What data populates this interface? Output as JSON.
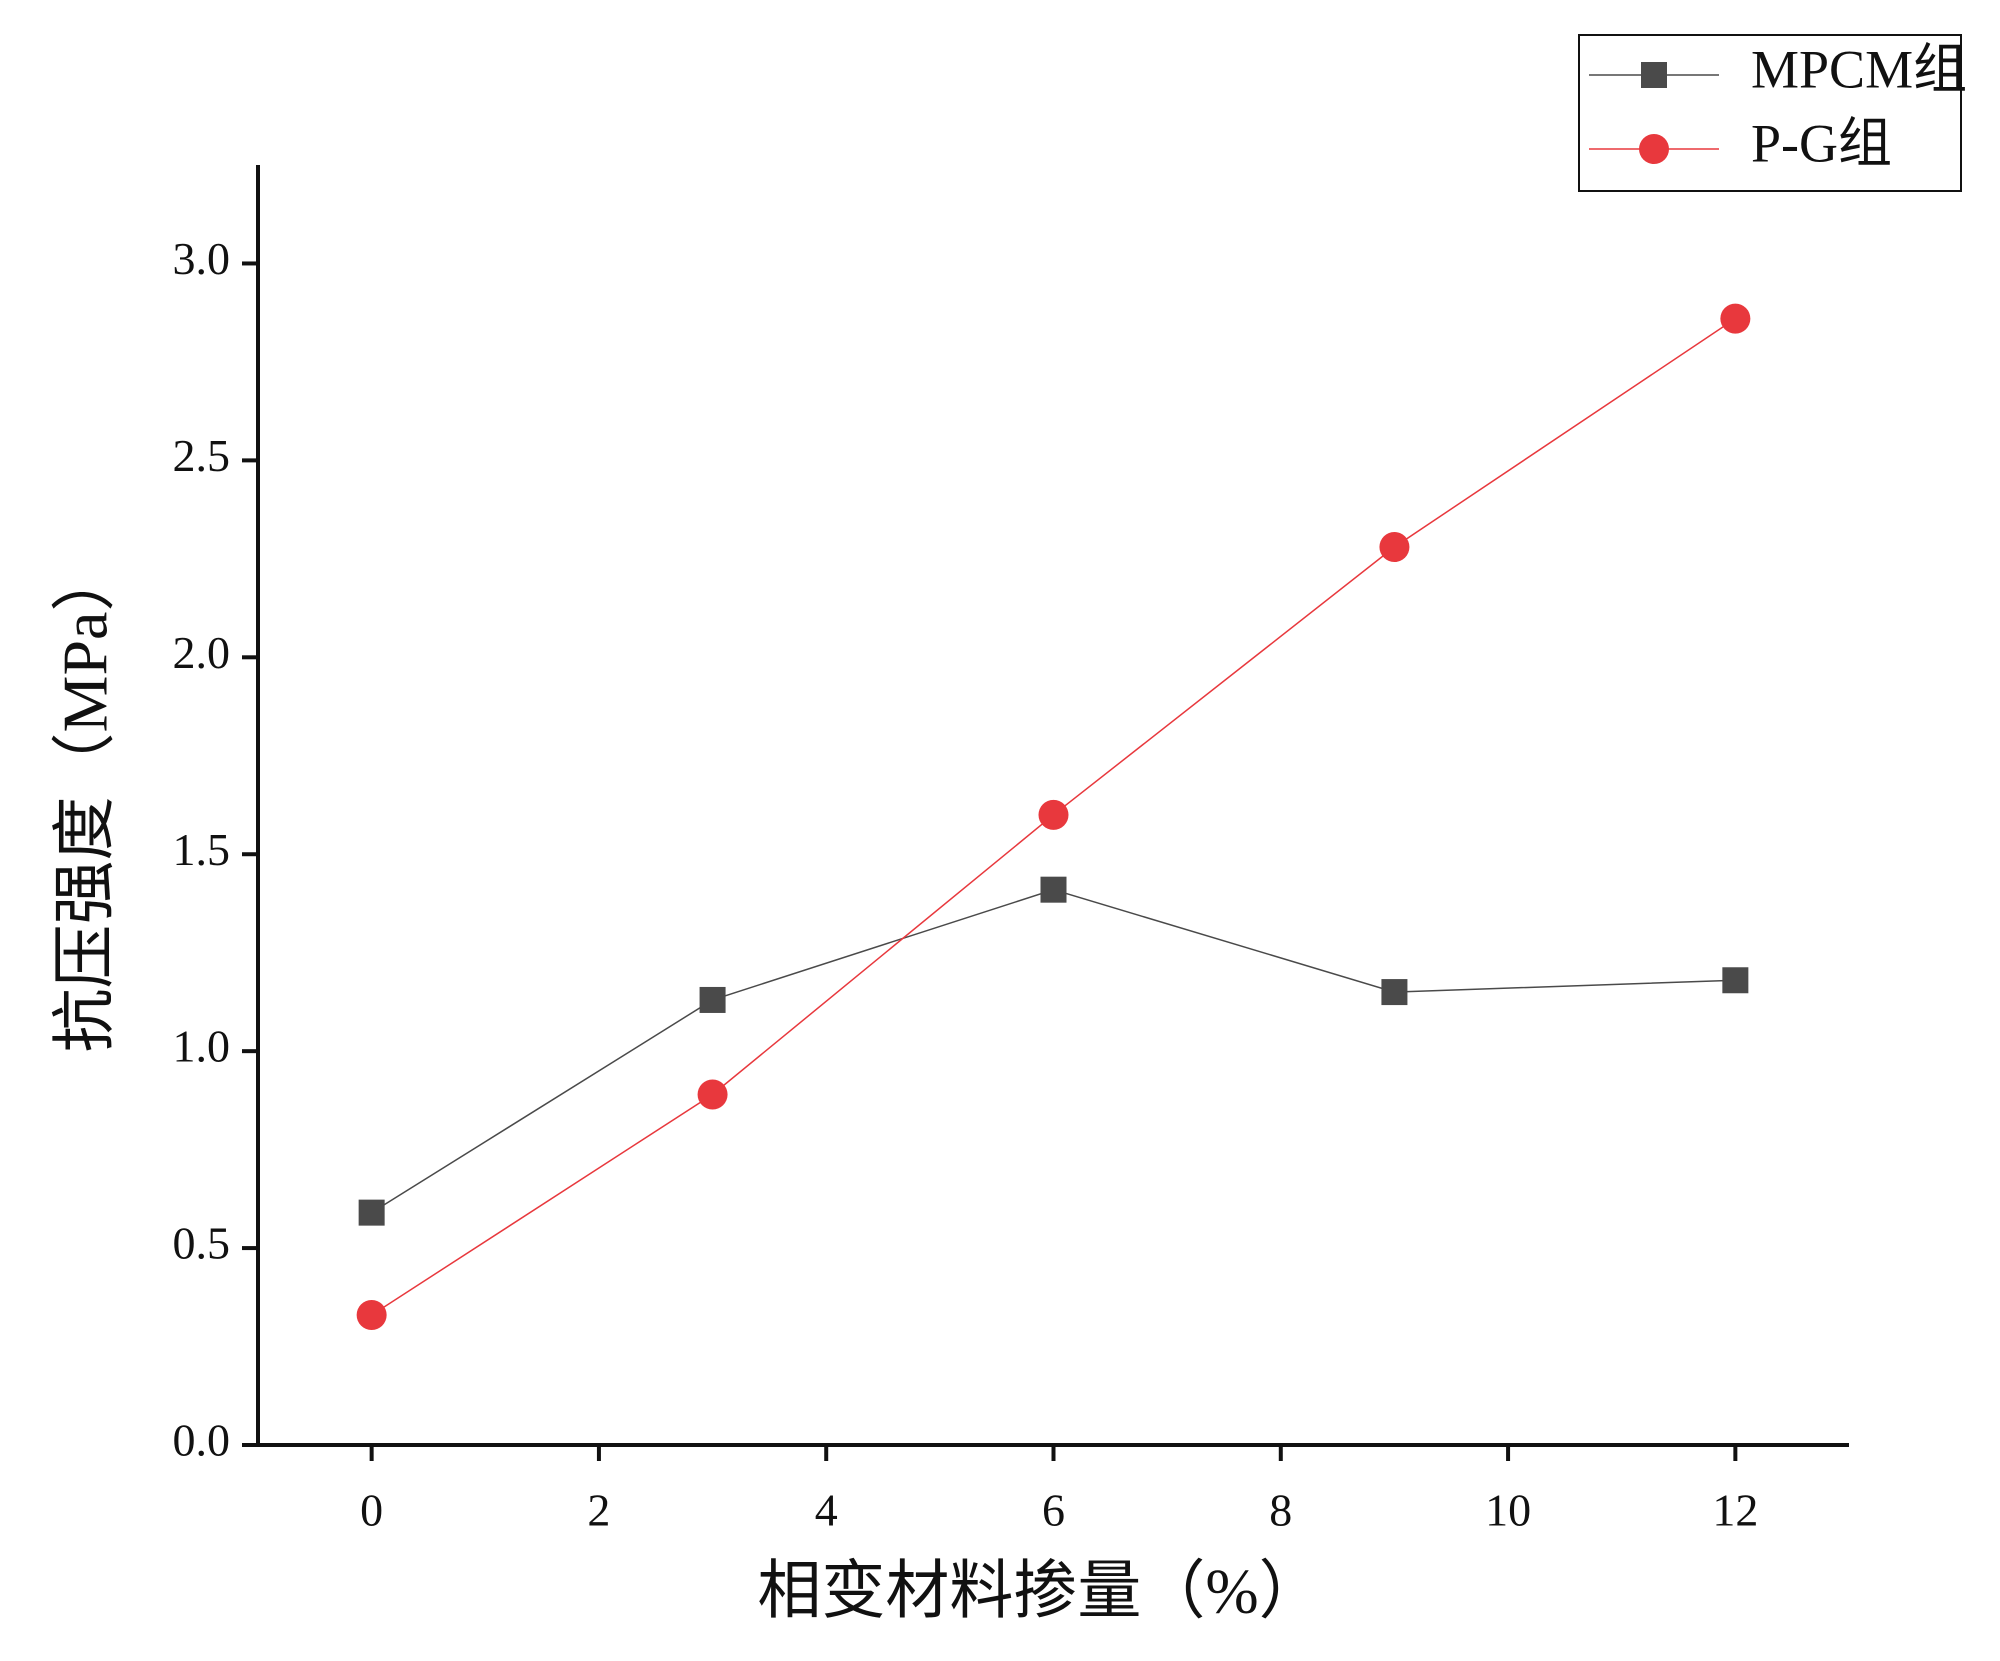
{
  "chart_data": {
    "type": "line",
    "x_label": "相变材料掺量（%）",
    "y_label": "抗压强度（MPa）",
    "x": [
      0,
      3,
      6,
      9,
      12
    ],
    "series": [
      {
        "name": "MPCM组",
        "color": "#4a4a4a",
        "marker": "square",
        "values": [
          0.59,
          1.13,
          1.41,
          1.15,
          1.18
        ]
      },
      {
        "name": "P-G组",
        "color": "#e8383d",
        "marker": "circle",
        "values": [
          0.33,
          0.89,
          1.6,
          2.28,
          2.86
        ]
      }
    ],
    "xlim": [
      -1,
      13
    ],
    "xticks": [
      0,
      2,
      4,
      6,
      8,
      10,
      12
    ],
    "ylim": [
      0,
      3.25
    ],
    "yticks": [
      {
        "value": 0,
        "label": "0.0"
      },
      {
        "value": 0.5,
        "label": "0.5"
      },
      {
        "value": 1,
        "label": "1.0"
      },
      {
        "value": 1.5,
        "label": "1.5"
      },
      {
        "value": 2,
        "label": "2.0"
      },
      {
        "value": 2.5,
        "label": "2.5"
      },
      {
        "value": 3,
        "label": "3.0"
      }
    ],
    "grid": false,
    "legend": "top-right"
  }
}
